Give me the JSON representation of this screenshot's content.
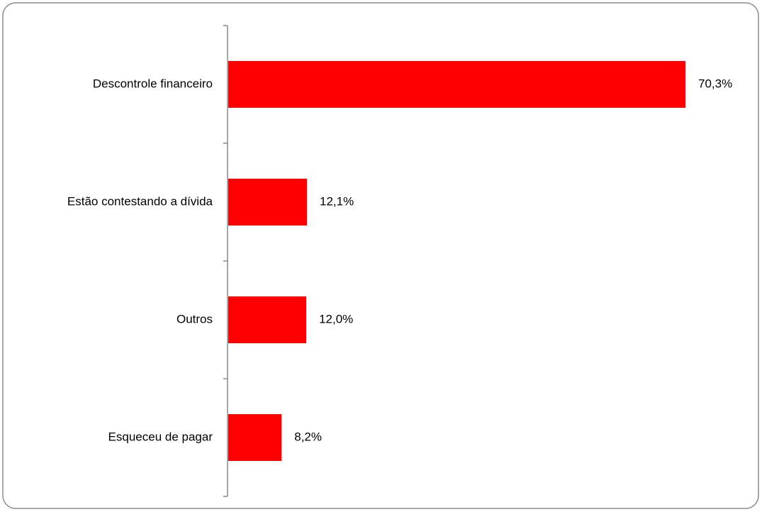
{
  "chart_data": {
    "type": "bar",
    "orientation": "horizontal",
    "categories": [
      "Descontrole financeiro",
      "Estão contestando a dívida",
      "Outros",
      "Esqueceu de pagar"
    ],
    "values": [
      70.3,
      12.1,
      12.0,
      8.2
    ],
    "value_labels": [
      "70,3%",
      "12,1%",
      "12,0%",
      "8,2%"
    ],
    "color": "#ff0000"
  }
}
